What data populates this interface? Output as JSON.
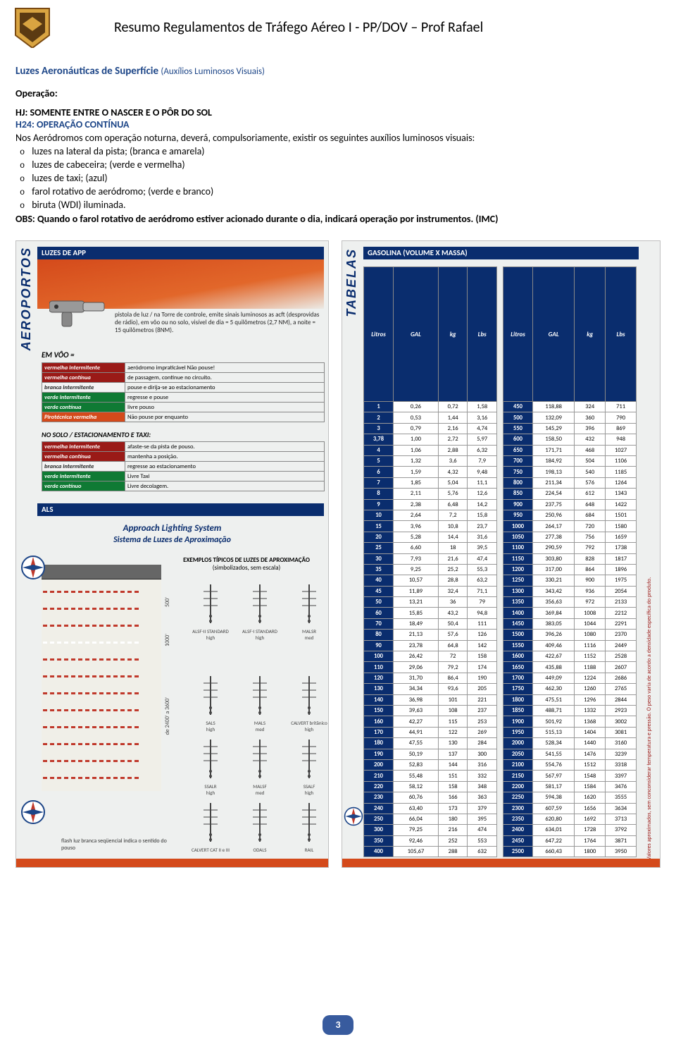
{
  "header": {
    "title": "Resumo Regulamentos de Tráfego Aéreo I - PP/DOV – Prof Rafael"
  },
  "section": {
    "title": "Luzes Aeronáuticas de Superfície",
    "subtitle": "(Auxílios Luminosos Visuais)"
  },
  "operacao": "Operação:",
  "hj": "HJ: SOMENTE ENTRE O NASCER E O PÔR DO SOL",
  "h24": "H24: OPERAÇÃO CONTÍNUA",
  "intro": "Nos Aeródromos com operação noturna, deverá, compulsoriamente, existir os seguintes auxílios luminosos visuais:",
  "aux": [
    "luzes na lateral da pista; (branca e amarela)",
    "luzes de cabeceira; (verde e vermelha)",
    "luzes de taxi; (azul)",
    "farol rotativo de aeródromo; (verde e branco)",
    "biruta (WDI) iluminada."
  ],
  "obs": "OBS: Quando o farol rotativo de aeródromo estiver acionado durante o dia, indicará operação por instrumentos. (IMC)",
  "left": {
    "vertlabel": "AEROPORTOS",
    "luzesapp": "LUZES DE APP",
    "signalText": "pistola de luz / na Torre de controle, emite sinais luminosos as acft (desprovidas de rádio), em vôo ou no solo, visível de dia = 5 quilômetros (2,7 NM), a noite = 15 quilômetros (8NM).",
    "emvoo": "EM VÔO =",
    "sig1": [
      {
        "label": "vermelha intermitente",
        "cls": "c-red",
        "txt": "aeródromo impraticável Não pouse!"
      },
      {
        "label": "vermelha contínua",
        "cls": "c-red",
        "txt": "de passagem, continue no circuito."
      },
      {
        "label": "branca intermitente",
        "cls": "c-white",
        "txt": "pouse e dirija-se ao estacionamento"
      },
      {
        "label": "verde intermitente",
        "cls": "c-green",
        "txt": "regresse e pouse"
      },
      {
        "label": "verde contínua",
        "cls": "c-green",
        "txt": "livre pouso"
      },
      {
        "label": "Pirotécnica vermelha",
        "cls": "c-piro",
        "txt": "Não pouse por enquanto"
      }
    ],
    "solohdr": "NO SOLO / ESTACIONAMENTO E TAXI:",
    "sig2": [
      {
        "label": "vermelha intermitente",
        "cls": "c-red",
        "txt": "afaste-se da pista de pouso."
      },
      {
        "label": "vermelha contínua",
        "cls": "c-red",
        "txt": "mantenha a posição."
      },
      {
        "label": "branca intermitente",
        "cls": "c-white",
        "txt": "regresse ao estacionamento"
      },
      {
        "label": "verde intermitente",
        "cls": "c-green",
        "txt": "Livre Taxi"
      },
      {
        "label": "verde contínuo",
        "cls": "c-green",
        "txt": "Livre decolagem."
      }
    ],
    "als": "ALS",
    "alsTitle": "Approach Lighting System",
    "alsSub": "Sistema de Luzes de Aproximação",
    "exTitle": "EXEMPLOS TÍPICOS DE LUZES DE APROXIMAÇÃO",
    "exSub": "(simbolizados, sem escala)",
    "alsSymbols": [
      {
        "l": "ALSF-II STANDARD",
        "s": "high"
      },
      {
        "l": "ALSF-I STANDARD",
        "s": "high"
      },
      {
        "l": "MALSR",
        "s": "med"
      },
      {
        "l": "SALS",
        "s": "high"
      },
      {
        "l": "MALS",
        "s": "med"
      },
      {
        "l": "CALVERT britânico",
        "s": "high"
      },
      {
        "l": "SSALR",
        "s": "high"
      },
      {
        "l": "MALSF",
        "s": "med"
      },
      {
        "l": "SSALF",
        "s": "high"
      },
      {
        "l": "CALVERT CAT II e III",
        "s": ""
      },
      {
        "l": "ODALS",
        "s": ""
      },
      {
        "l": "RAIL",
        "s": ""
      }
    ],
    "dim1": "500'",
    "dim2": "1000'",
    "dim3": "de 2400' a 3600'",
    "flashNote": "flash luz branca seqüencial indica o sentido do pouso"
  },
  "right": {
    "vertlabel": "TABELAS",
    "gasbar": "GASOLINA (VOLUME X MASSA)",
    "cols": [
      "Litros",
      "GAL",
      "kg",
      "Lbs"
    ],
    "vside": "Valores aproximados, sem conconsiderar temperatura e pressão. O peso varia de acordo a densidade específica do produto.",
    "table1": [
      [
        "1",
        "0,26",
        "0,72",
        "1,58"
      ],
      [
        "2",
        "0,53",
        "1,44",
        "3,16"
      ],
      [
        "3",
        "0,79",
        "2,16",
        "4,74"
      ],
      [
        "3,78",
        "1,00",
        "2,72",
        "5,97"
      ],
      [
        "4",
        "1,06",
        "2,88",
        "6,32"
      ],
      [
        "5",
        "1,32",
        "3,6",
        "7,9"
      ],
      [
        "6",
        "1,59",
        "4,32",
        "9,48"
      ],
      [
        "7",
        "1,85",
        "5,04",
        "11,1"
      ],
      [
        "8",
        "2,11",
        "5,76",
        "12,6"
      ],
      [
        "9",
        "2,38",
        "6,48",
        "14,2"
      ],
      [
        "10",
        "2,64",
        "7,2",
        "15,8"
      ],
      [
        "15",
        "3,96",
        "10,8",
        "23,7"
      ],
      [
        "20",
        "5,28",
        "14,4",
        "31,6"
      ],
      [
        "25",
        "6,60",
        "18",
        "39,5"
      ],
      [
        "30",
        "7,93",
        "21,6",
        "47,4"
      ],
      [
        "35",
        "9,25",
        "25,2",
        "55,3"
      ],
      [
        "40",
        "10,57",
        "28,8",
        "63,2"
      ],
      [
        "45",
        "11,89",
        "32,4",
        "71,1"
      ],
      [
        "50",
        "13,21",
        "36",
        "79"
      ],
      [
        "60",
        "15,85",
        "43,2",
        "94,8"
      ],
      [
        "70",
        "18,49",
        "50,4",
        "111"
      ],
      [
        "80",
        "21,13",
        "57,6",
        "126"
      ],
      [
        "90",
        "23,78",
        "64,8",
        "142"
      ],
      [
        "100",
        "26,42",
        "72",
        "158"
      ],
      [
        "110",
        "29,06",
        "79,2",
        "174"
      ],
      [
        "120",
        "31,70",
        "86,4",
        "190"
      ],
      [
        "130",
        "34,34",
        "93,6",
        "205"
      ],
      [
        "140",
        "36,98",
        "101",
        "221"
      ],
      [
        "150",
        "39,63",
        "108",
        "237"
      ],
      [
        "160",
        "42,27",
        "115",
        "253"
      ],
      [
        "170",
        "44,91",
        "122",
        "269"
      ],
      [
        "180",
        "47,55",
        "130",
        "284"
      ],
      [
        "190",
        "50,19",
        "137",
        "300"
      ],
      [
        "200",
        "52,83",
        "144",
        "316"
      ],
      [
        "210",
        "55,48",
        "151",
        "332"
      ],
      [
        "220",
        "58,12",
        "158",
        "348"
      ],
      [
        "230",
        "60,76",
        "166",
        "363"
      ],
      [
        "240",
        "63,40",
        "173",
        "379"
      ],
      [
        "250",
        "66,04",
        "180",
        "395"
      ],
      [
        "300",
        "79,25",
        "216",
        "474"
      ],
      [
        "350",
        "92,46",
        "252",
        "553"
      ],
      [
        "400",
        "105,67",
        "288",
        "632"
      ]
    ],
    "table2": [
      [
        "450",
        "118,88",
        "324",
        "711"
      ],
      [
        "500",
        "132,09",
        "360",
        "790"
      ],
      [
        "550",
        "145,29",
        "396",
        "869"
      ],
      [
        "600",
        "158,50",
        "432",
        "948"
      ],
      [
        "650",
        "171,71",
        "468",
        "1027"
      ],
      [
        "700",
        "184,92",
        "504",
        "1106"
      ],
      [
        "750",
        "198,13",
        "540",
        "1185"
      ],
      [
        "800",
        "211,34",
        "576",
        "1264"
      ],
      [
        "850",
        "224,54",
        "612",
        "1343"
      ],
      [
        "900",
        "237,75",
        "648",
        "1422"
      ],
      [
        "950",
        "250,96",
        "684",
        "1501"
      ],
      [
        "1000",
        "264,17",
        "720",
        "1580"
      ],
      [
        "1050",
        "277,38",
        "756",
        "1659"
      ],
      [
        "1100",
        "290,59",
        "792",
        "1738"
      ],
      [
        "1150",
        "303,80",
        "828",
        "1817"
      ],
      [
        "1200",
        "317,00",
        "864",
        "1896"
      ],
      [
        "1250",
        "330,21",
        "900",
        "1975"
      ],
      [
        "1300",
        "343,42",
        "936",
        "2054"
      ],
      [
        "1350",
        "356,63",
        "972",
        "2133"
      ],
      [
        "1400",
        "369,84",
        "1008",
        "2212"
      ],
      [
        "1450",
        "383,05",
        "1044",
        "2291"
      ],
      [
        "1500",
        "396,26",
        "1080",
        "2370"
      ],
      [
        "1550",
        "409,46",
        "1116",
        "2449"
      ],
      [
        "1600",
        "422,67",
        "1152",
        "2528"
      ],
      [
        "1650",
        "435,88",
        "1188",
        "2607"
      ],
      [
        "1700",
        "449,09",
        "1224",
        "2686"
      ],
      [
        "1750",
        "462,30",
        "1260",
        "2765"
      ],
      [
        "1800",
        "475,51",
        "1296",
        "2844"
      ],
      [
        "1850",
        "488,71",
        "1332",
        "2923"
      ],
      [
        "1900",
        "501,92",
        "1368",
        "3002"
      ],
      [
        "1950",
        "515,13",
        "1404",
        "3081"
      ],
      [
        "2000",
        "528,34",
        "1440",
        "3160"
      ],
      [
        "2050",
        "541,55",
        "1476",
        "3239"
      ],
      [
        "2100",
        "554,76",
        "1512",
        "3318"
      ],
      [
        "2150",
        "567,97",
        "1548",
        "3397"
      ],
      [
        "2200",
        "581,17",
        "1584",
        "3476"
      ],
      [
        "2250",
        "594,38",
        "1620",
        "3555"
      ],
      [
        "2300",
        "607,59",
        "1656",
        "3634"
      ],
      [
        "2350",
        "620,80",
        "1692",
        "3713"
      ],
      [
        "2400",
        "634,01",
        "1728",
        "3792"
      ],
      [
        "2450",
        "647,22",
        "1764",
        "3871"
      ],
      [
        "2500",
        "660,43",
        "1800",
        "3950"
      ]
    ]
  },
  "pageNum": "3"
}
